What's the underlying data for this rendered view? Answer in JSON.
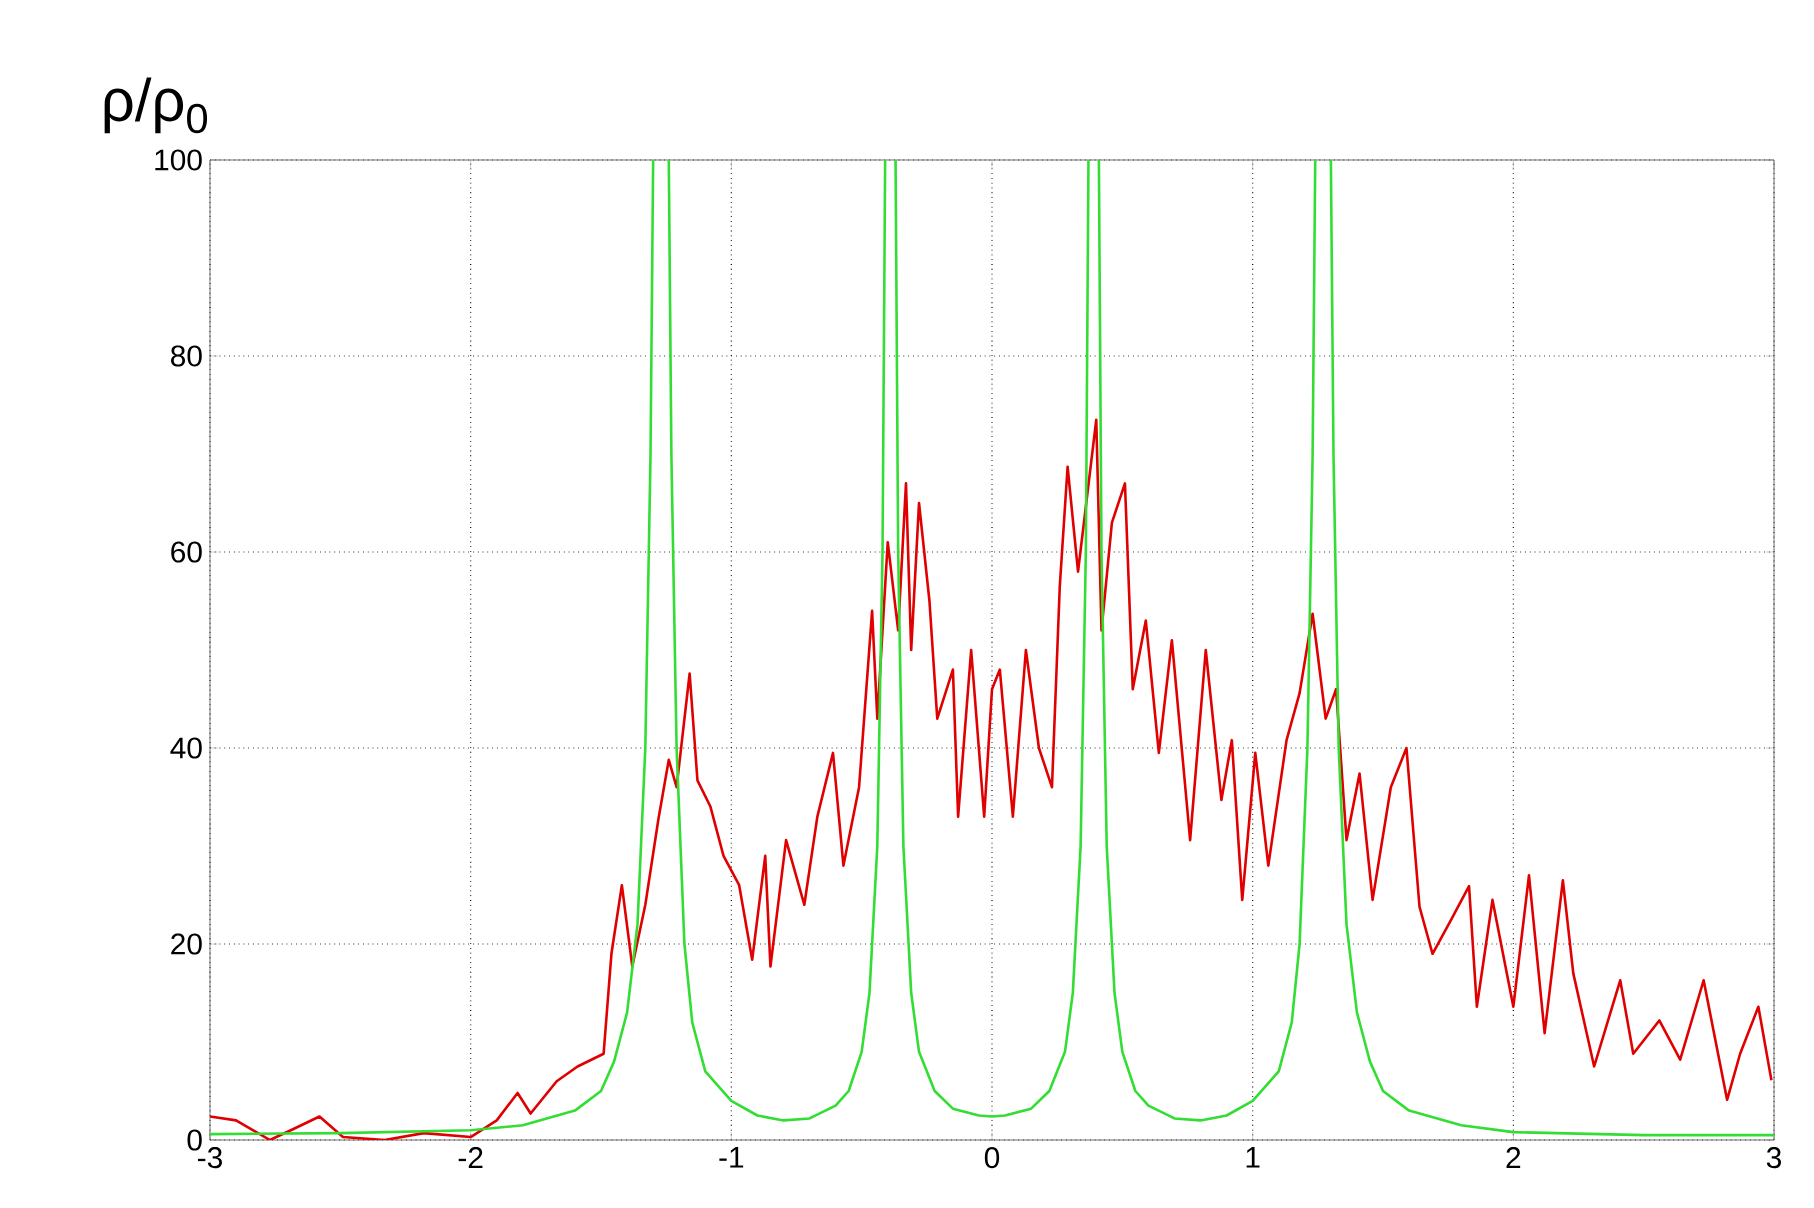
{
  "chart_data": {
    "type": "line",
    "ylabel": "ρ/ρ$_{0}$",
    "xlim": [
      -3,
      3
    ],
    "xticks": [
      -3,
      -2,
      -1,
      0,
      1,
      2,
      3
    ],
    "ylim": [
      0,
      100
    ],
    "yticks": [
      0,
      20,
      40,
      60,
      80,
      100
    ],
    "grid": true,
    "marker": "none",
    "line_style": "solid",
    "series": [
      {
        "color": "#e00000",
        "x": [
          -3,
          -2.9,
          -2.77,
          -2.69,
          -2.58,
          -2.49,
          -2.33,
          -2.18,
          -2.0,
          -1.9,
          -1.82,
          -1.77,
          -1.67,
          -1.59,
          -1.49,
          -1.46,
          -1.42,
          -1.38,
          -1.33,
          -1.28,
          -1.24,
          -1.21,
          -1.16,
          -1.13,
          -1.08,
          -1.03,
          -0.97,
          -0.92,
          -0.87,
          -0.85,
          -0.79,
          -0.72,
          -0.67,
          -0.61,
          -0.57,
          -0.51,
          -0.46,
          -0.44,
          -0.4,
          -0.36,
          -0.33,
          -0.31,
          -0.28,
          -0.24,
          -0.21,
          -0.15,
          -0.13,
          -0.08,
          -0.03,
          0.0,
          0.03,
          0.08,
          0.13,
          0.18,
          0.23,
          0.26,
          0.29,
          0.33,
          0.4,
          0.42,
          0.46,
          0.51,
          0.54,
          0.59,
          0.64,
          0.69,
          0.76,
          0.82,
          0.88,
          0.92,
          0.96,
          1.01,
          1.06,
          1.13,
          1.18,
          1.23,
          1.28,
          1.32,
          1.36,
          1.41,
          1.46,
          1.53,
          1.59,
          1.64,
          1.69,
          1.76,
          1.83,
          1.86,
          1.92,
          2.0,
          2.06,
          2.12,
          2.19,
          2.23,
          2.31,
          2.41,
          2.46,
          2.56,
          2.64,
          2.73,
          2.82,
          2.87,
          2.94,
          2.99
        ],
        "values": [
          2.4,
          2,
          0,
          1,
          2.4,
          0.3,
          0,
          0.7,
          0.3,
          2,
          4.8,
          2.7,
          6,
          7.5,
          8.8,
          19,
          26,
          17.7,
          24,
          32.7,
          38.8,
          36,
          47.6,
          36.7,
          34,
          29,
          26,
          18.4,
          29,
          17.7,
          30.6,
          24,
          33,
          39.5,
          28,
          36,
          54,
          43,
          61,
          52,
          67,
          50,
          65,
          55,
          43,
          48,
          33,
          50,
          33,
          46,
          48,
          33,
          50,
          40,
          36,
          56.5,
          68.7,
          58,
          73.5,
          52,
          63,
          67,
          46,
          53,
          39.5,
          51,
          30.6,
          50,
          34.7,
          40.8,
          24.5,
          39.5,
          28,
          40.8,
          45.6,
          53.7,
          43,
          46,
          30.6,
          37.4,
          24.5,
          36,
          40,
          23.8,
          19,
          22.4,
          25.9,
          13.6,
          24.5,
          13.6,
          27,
          10.9,
          26.5,
          17,
          7.5,
          16.3,
          8.8,
          12.2,
          8.2,
          16.3,
          4.1,
          8.8,
          13.6,
          6.1
        ]
      },
      {
        "color": "#33dd33",
        "x": [
          -3,
          -2.5,
          -2,
          -1.8,
          -1.6,
          -1.5,
          -1.45,
          -1.4,
          -1.36,
          -1.33,
          -1.31,
          -1.3,
          -1.27,
          -1.24,
          -1.23,
          -1.21,
          -1.18,
          -1.15,
          -1.1,
          -1.0,
          -0.9,
          -0.8,
          -0.7,
          -0.6,
          -0.55,
          -0.5,
          -0.47,
          -0.44,
          -0.42,
          -0.41,
          -0.39,
          -0.37,
          -0.36,
          -0.34,
          -0.31,
          -0.28,
          -0.22,
          -0.15,
          -0.05,
          0,
          0.05,
          0.15,
          0.22,
          0.28,
          0.31,
          0.34,
          0.36,
          0.37,
          0.39,
          0.41,
          0.42,
          0.44,
          0.47,
          0.5,
          0.55,
          0.6,
          0.7,
          0.8,
          0.9,
          1.0,
          1.1,
          1.15,
          1.18,
          1.21,
          1.23,
          1.24,
          1.27,
          1.3,
          1.31,
          1.33,
          1.36,
          1.4,
          1.45,
          1.5,
          1.6,
          1.8,
          2,
          2.5,
          3
        ],
        "values": [
          0.6,
          0.7,
          1.0,
          1.5,
          3,
          5,
          8,
          13,
          22,
          40,
          70,
          100,
          null,
          100,
          70,
          40,
          20,
          12,
          7,
          4,
          2.5,
          2.0,
          2.2,
          3.5,
          5,
          9,
          15,
          30,
          60,
          100,
          null,
          100,
          60,
          30,
          15,
          9,
          5,
          3.2,
          2.5,
          2.4,
          2.5,
          3.2,
          5,
          9,
          15,
          30,
          60,
          100,
          null,
          100,
          60,
          30,
          15,
          9,
          5,
          3.5,
          2.2,
          2.0,
          2.5,
          4,
          7,
          12,
          20,
          40,
          70,
          100,
          null,
          100,
          70,
          40,
          22,
          13,
          8,
          5,
          3,
          1.5,
          0.8,
          0.5,
          0.5
        ]
      }
    ]
  }
}
